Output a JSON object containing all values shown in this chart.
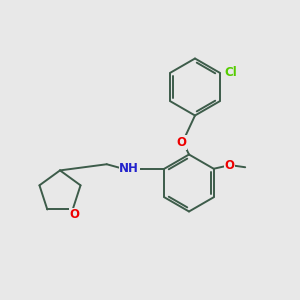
{
  "bg_color": "#e8e8e8",
  "bond_color": "#3d5c4a",
  "bond_width": 1.4,
  "O_color": "#ee0000",
  "N_color": "#2222cc",
  "Cl_color": "#55cc00",
  "font_size": 8.5,
  "fig_size": [
    3.0,
    3.0
  ],
  "dpi": 100,
  "xlim": [
    0,
    10
  ],
  "ylim": [
    0,
    10
  ]
}
